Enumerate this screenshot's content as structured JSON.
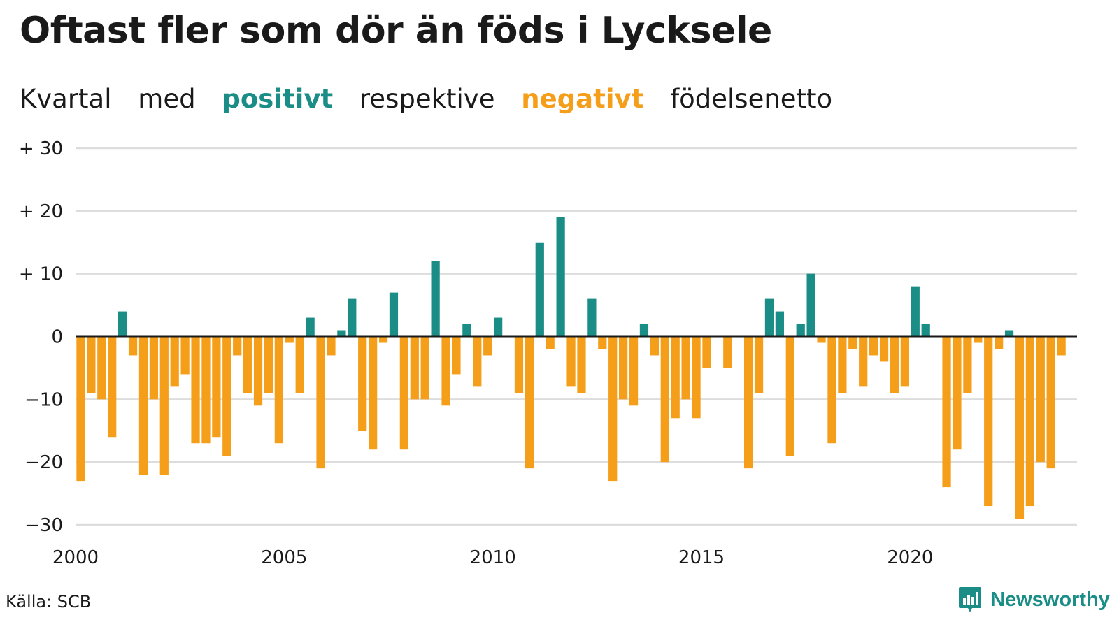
{
  "title": "Oftast fler som dör än föds i Lycksele",
  "subtitle": {
    "w1": "Kvartal",
    "w2": "med",
    "positive_word": "positivt",
    "w3": "respektive",
    "negative_word": "negativt",
    "w4": "födelsenetto"
  },
  "colors": {
    "positive": "#1b8d87",
    "negative": "#f59e1a",
    "grid": "#dddddd",
    "zero_line": "#1a1a1a",
    "text": "#1a1a1a"
  },
  "source": "Källa: SCB",
  "brand": {
    "name": "Newsworthy",
    "icon": "bar-chart-logo-icon"
  },
  "chart_data": {
    "type": "bar",
    "x_start": 2000,
    "x_step": 0.25,
    "xlim": [
      2000,
      2024
    ],
    "ylim": [
      -30,
      30
    ],
    "x_tick_values": [
      2000,
      2005,
      2010,
      2015,
      2020
    ],
    "x_tick_labels": [
      "2000",
      "2005",
      "2010",
      "2015",
      "2020"
    ],
    "y_tick_values": [
      30,
      20,
      10,
      0,
      -10,
      -20,
      -30
    ],
    "y_tick_labels": [
      "+ 30",
      "+ 20",
      "+ 10",
      "0",
      "−10",
      "−20",
      "−30"
    ],
    "grid": true,
    "values": [
      -23,
      -9,
      -10,
      -16,
      4,
      -3,
      -22,
      -10,
      -22,
      -8,
      -6,
      -17,
      -17,
      -16,
      -19,
      -3,
      -9,
      -11,
      -9,
      -17,
      -1,
      -9,
      3,
      -21,
      -3,
      1,
      6,
      -15,
      -18,
      -1,
      7,
      -18,
      -10,
      -10,
      12,
      -11,
      -6,
      2,
      -8,
      -3,
      3,
      0,
      -9,
      -21,
      15,
      -2,
      19,
      -8,
      -9,
      6,
      -2,
      -23,
      -10,
      -11,
      2,
      -3,
      -20,
      -13,
      -10,
      -13,
      -5,
      0,
      -5,
      0,
      -21,
      -9,
      6,
      4,
      -19,
      2,
      10,
      -1,
      -17,
      -9,
      -2,
      -8,
      -3,
      -4,
      -9,
      -8,
      8,
      2,
      0,
      -24,
      -18,
      -9,
      -1,
      -27,
      -2,
      1,
      -29,
      -27,
      -20,
      -21,
      -3
    ]
  }
}
